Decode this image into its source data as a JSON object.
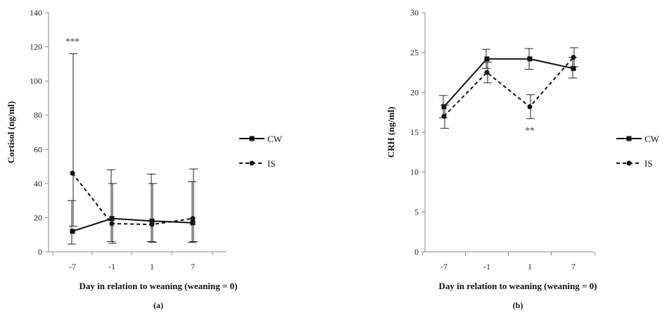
{
  "chart_data": [
    {
      "type": "line",
      "panel_label": "(a)",
      "categories": [
        "-7",
        "-1",
        "1",
        "7"
      ],
      "xlabel": "Day in relation to weaning (weaning  = 0)",
      "ylabel": "Cortisol (ng/ml)",
      "ylim": [
        0,
        140
      ],
      "yticks": [
        0,
        20,
        40,
        60,
        80,
        100,
        120,
        140
      ],
      "series": [
        {
          "name": "CW",
          "style": "solid",
          "marker": "square",
          "values": [
            12,
            19.5,
            18,
            17
          ],
          "err_upper": [
            30,
            48,
            45.5,
            41
          ],
          "err_lower": [
            4.5,
            6,
            6,
            5.5
          ]
        },
        {
          "name": "IS",
          "style": "dashed",
          "marker": "circle",
          "values": [
            46,
            16.5,
            16,
            19.5
          ],
          "err_upper": [
            116,
            40,
            40,
            48.5
          ],
          "err_lower": [
            15,
            5,
            5.5,
            6
          ]
        }
      ],
      "annotations": [
        {
          "text": "***",
          "category": "-7",
          "y": 124
        }
      ],
      "legend": "right",
      "grid": false
    },
    {
      "type": "line",
      "panel_label": "(b)",
      "categories": [
        "-7",
        "-1",
        "1",
        "7"
      ],
      "xlabel": "Day in relation to weaning (weaning = 0)",
      "ylabel": "CRH (ng/ml)",
      "ylim": [
        0,
        30
      ],
      "yticks": [
        0,
        5,
        10,
        15,
        20,
        25,
        30
      ],
      "series": [
        {
          "name": "CW",
          "style": "solid",
          "marker": "square",
          "values": [
            18.2,
            24.2,
            24.2,
            23
          ],
          "err_upper": [
            19.6,
            25.4,
            25.5,
            24.4
          ],
          "err_lower": [
            16.8,
            23,
            22.9,
            21.8
          ]
        },
        {
          "name": "IS",
          "style": "dashed",
          "marker": "circle",
          "values": [
            17,
            22.5,
            18.2,
            24.4
          ],
          "err_upper": [
            18.4,
            23.8,
            19.7,
            25.6
          ],
          "err_lower": [
            15.5,
            21.2,
            16.7,
            23.2
          ]
        }
      ],
      "annotations": [
        {
          "text": "**",
          "category": "1",
          "y": 15.4
        }
      ],
      "legend": "right",
      "grid": false
    }
  ]
}
